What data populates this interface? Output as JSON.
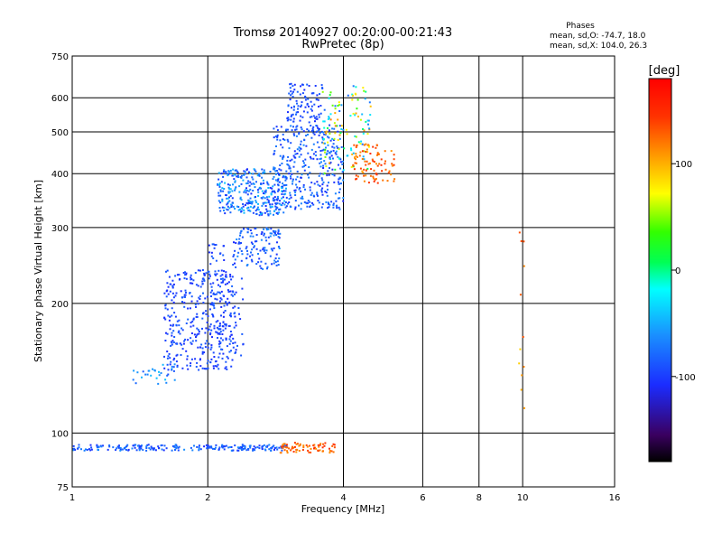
{
  "chart_data": {
    "type": "scatter",
    "title": "Tromsø 20140927 00:20:00-00:21:43",
    "subtitle": "RwPretec (8p)",
    "xlabel": "Frequency [MHz]",
    "ylabel": "Stationary phase Virtual Height [km]",
    "x_scale": "log",
    "y_scale": "log",
    "xlim": [
      1,
      16
    ],
    "ylim": [
      75,
      750
    ],
    "x_ticks": [
      1,
      2,
      4,
      6,
      8,
      10,
      16
    ],
    "y_ticks": [
      75,
      100,
      200,
      300,
      400,
      500,
      600,
      750
    ],
    "grid": true,
    "phases": {
      "heading": "Phases",
      "line_o": "mean, sd,O: -74.7, 18.0",
      "line_x": "mean, sd,X: 104.0, 26.3"
    },
    "colorbar": {
      "label": "[deg]",
      "range": [
        -180,
        180
      ],
      "ticks": [
        100,
        0,
        -100
      ],
      "colormap": "rainbow"
    },
    "clusters": [
      {
        "x_range": [
          1.0,
          3.0
        ],
        "y_range": [
          91,
          94
        ],
        "phase_range": [
          -110,
          -60
        ],
        "count": 230
      },
      {
        "x_range": [
          2.9,
          3.9
        ],
        "y_range": [
          90,
          95
        ],
        "phase_range": [
          110,
          150
        ],
        "count": 70
      },
      {
        "x_range": [
          1.35,
          1.7
        ],
        "y_range": [
          130,
          145
        ],
        "phase_range": [
          -90,
          -40
        ],
        "count": 30
      },
      {
        "x_range": [
          1.6,
          2.3
        ],
        "y_range": [
          140,
          240
        ],
        "phase_range": [
          -110,
          -80
        ],
        "count": 380
      },
      {
        "x_range": [
          2.0,
          2.4
        ],
        "y_range": [
          150,
          280
        ],
        "phase_range": [
          -110,
          -80
        ],
        "count": 90
      },
      {
        "x_range": [
          2.3,
          2.9
        ],
        "y_range": [
          240,
          300
        ],
        "phase_range": [
          -105,
          -60
        ],
        "count": 120
      },
      {
        "x_range": [
          2.1,
          3.0
        ],
        "y_range": [
          320,
          410
        ],
        "phase_range": [
          -110,
          -40
        ],
        "count": 320
      },
      {
        "x_range": [
          2.8,
          4.0
        ],
        "y_range": [
          330,
          520
        ],
        "phase_range": [
          -110,
          -60
        ],
        "count": 340
      },
      {
        "x_range": [
          3.0,
          3.6
        ],
        "y_range": [
          500,
          650
        ],
        "phase_range": [
          -110,
          -80
        ],
        "count": 110
      },
      {
        "x_range": [
          3.6,
          4.6
        ],
        "y_range": [
          400,
          640
        ],
        "phase_range": [
          -80,
          120
        ],
        "count": 120
      },
      {
        "x_range": [
          4.2,
          5.2
        ],
        "y_range": [
          380,
          470
        ],
        "phase_range": [
          110,
          150
        ],
        "count": 90
      },
      {
        "x_range": [
          9.8,
          10.1
        ],
        "y_range": [
          90,
          300
        ],
        "phase_range": [
          80,
          140
        ],
        "count": 12
      }
    ]
  }
}
